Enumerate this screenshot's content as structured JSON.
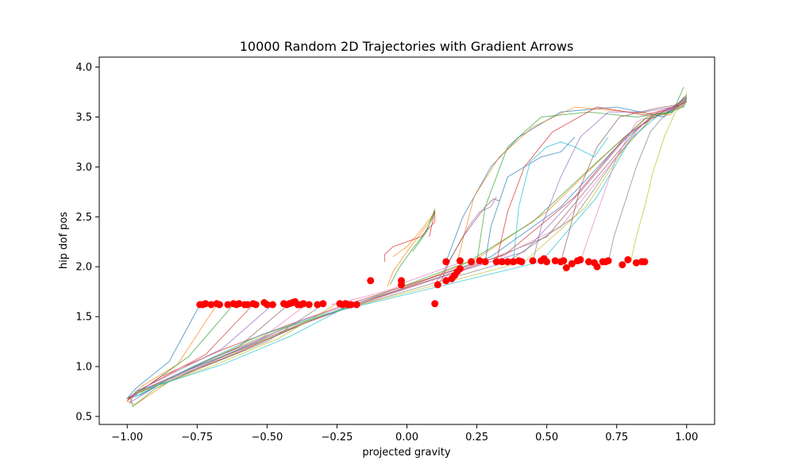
{
  "chart_data": {
    "type": "line",
    "title": "10000 Random 2D Trajectories with Gradient Arrows",
    "xlabel": "projected gravity",
    "ylabel": "hip dof pos",
    "xlim": [
      -1.1,
      1.1
    ],
    "ylim": [
      0.42,
      4.1
    ],
    "x_ticks": [
      -1.0,
      -0.75,
      -0.5,
      -0.25,
      0.0,
      0.25,
      0.5,
      0.75,
      1.0
    ],
    "x_tick_labels": [
      "−1.00",
      "−0.75",
      "−0.50",
      "−0.25",
      "0.00",
      "0.25",
      "0.50",
      "0.75",
      "1.00"
    ],
    "y_ticks": [
      0.5,
      1.0,
      1.5,
      2.0,
      2.5,
      3.0,
      3.5,
      4.0
    ],
    "y_tick_labels": [
      "0.5",
      "1.0",
      "1.5",
      "2.0",
      "2.5",
      "3.0",
      "3.5",
      "4.0"
    ],
    "grid": false,
    "line_colors": [
      "#1f77b4",
      "#ff7f0e",
      "#2ca02c",
      "#d62728",
      "#9467bd",
      "#8c564b",
      "#e377c2",
      "#7f7f7f",
      "#bcbd22",
      "#17becf"
    ],
    "marker_color": "#ff0000",
    "series": [
      {
        "x": [
          -0.74,
          -0.85,
          -0.97,
          -1.0,
          -0.95,
          -0.8,
          -0.55,
          -0.35,
          -0.2,
          0.1,
          0.3,
          0.55,
          0.75,
          0.88,
          0.97,
          1.0
        ],
        "y": [
          1.62,
          1.05,
          0.78,
          0.68,
          0.72,
          0.95,
          1.22,
          1.45,
          1.6,
          1.9,
          2.1,
          2.6,
          3.2,
          3.52,
          3.6,
          3.68
        ]
      },
      {
        "x": [
          -0.68,
          -0.82,
          -0.95,
          -1.0,
          -0.97,
          -0.85,
          -0.6,
          -0.4,
          -0.22,
          0.05,
          0.25,
          0.5,
          0.72,
          0.86,
          0.96,
          0.99
        ],
        "y": [
          1.62,
          1.02,
          0.8,
          0.65,
          0.62,
          0.85,
          1.15,
          1.4,
          1.58,
          1.85,
          2.08,
          2.55,
          3.15,
          3.5,
          3.58,
          3.7
        ]
      },
      {
        "x": [
          -0.62,
          -0.78,
          -0.92,
          -0.99,
          -0.98,
          -0.9,
          -0.7,
          -0.45,
          -0.26,
          0.0,
          0.22,
          0.45,
          0.68,
          0.85,
          0.95,
          1.0
        ],
        "y": [
          1.62,
          1.1,
          0.82,
          0.7,
          0.6,
          0.78,
          1.05,
          1.35,
          1.55,
          1.82,
          2.05,
          2.45,
          3.05,
          3.48,
          3.55,
          3.72
        ]
      },
      {
        "x": [
          -0.55,
          -0.72,
          -0.9,
          -0.98,
          -1.0,
          -0.88,
          -0.65,
          -0.42,
          -0.24,
          0.12,
          0.35,
          0.6,
          0.78,
          0.9,
          0.97,
          1.0
        ],
        "y": [
          1.62,
          1.12,
          0.85,
          0.72,
          0.66,
          0.9,
          1.18,
          1.42,
          1.6,
          1.92,
          2.12,
          2.7,
          3.3,
          3.55,
          3.62,
          3.65
        ]
      },
      {
        "x": [
          -0.48,
          -0.66,
          -0.86,
          -0.97,
          -0.99,
          -0.85,
          -0.58,
          -0.38,
          -0.2,
          0.18,
          0.42,
          0.62,
          0.8,
          0.92,
          0.98,
          1.0
        ],
        "y": [
          1.62,
          1.18,
          0.9,
          0.75,
          0.64,
          0.88,
          1.2,
          1.46,
          1.62,
          1.95,
          2.15,
          2.75,
          3.35,
          3.56,
          3.6,
          3.7
        ]
      },
      {
        "x": [
          -0.42,
          -0.6,
          -0.82,
          -0.95,
          -1.0,
          -0.9,
          -0.62,
          -0.36,
          -0.18,
          0.25,
          0.5,
          0.68,
          0.83,
          0.93,
          0.98,
          1.0
        ],
        "y": [
          1.63,
          1.2,
          0.92,
          0.76,
          0.68,
          0.82,
          1.12,
          1.44,
          1.62,
          2.02,
          2.3,
          2.9,
          3.4,
          3.58,
          3.63,
          3.66
        ]
      },
      {
        "x": [
          -0.36,
          -0.55,
          -0.78,
          -0.93,
          -0.99,
          -0.92,
          -0.7,
          -0.4,
          -0.2,
          0.3,
          0.55,
          0.72,
          0.85,
          0.94,
          0.99,
          1.0
        ],
        "y": [
          1.62,
          1.22,
          0.95,
          0.78,
          0.7,
          0.8,
          1.08,
          1.4,
          1.6,
          2.05,
          2.4,
          3.0,
          3.45,
          3.56,
          3.62,
          3.72
        ]
      },
      {
        "x": [
          -0.3,
          -0.5,
          -0.74,
          -0.9,
          -0.98,
          -0.94,
          -0.72,
          -0.44,
          -0.22,
          0.36,
          0.6,
          0.75,
          0.87,
          0.95,
          0.99,
          1.0
        ],
        "y": [
          1.62,
          1.25,
          0.98,
          0.8,
          0.72,
          0.76,
          1.05,
          1.38,
          1.58,
          2.05,
          2.5,
          3.1,
          3.48,
          3.57,
          3.6,
          3.68
        ]
      },
      {
        "x": [
          -0.25,
          -0.46,
          -0.7,
          -0.88,
          -0.97,
          -0.95,
          -0.75,
          -0.48,
          -0.26,
          0.42,
          0.64,
          0.78,
          0.88,
          0.95,
          0.99,
          1.0
        ],
        "y": [
          1.63,
          1.28,
          1.0,
          0.82,
          0.74,
          0.74,
          1.02,
          1.35,
          1.55,
          2.05,
          2.6,
          3.2,
          3.5,
          3.56,
          3.62,
          3.7
        ]
      },
      {
        "x": [
          -0.2,
          -0.42,
          -0.66,
          -0.86,
          -0.96,
          -0.97,
          -0.78,
          -0.52,
          -0.3,
          0.48,
          0.68,
          0.8,
          0.9,
          0.96,
          0.99,
          1.0
        ],
        "y": [
          1.62,
          1.3,
          1.02,
          0.84,
          0.76,
          0.7,
          0.98,
          1.32,
          1.52,
          2.05,
          2.7,
          3.28,
          3.52,
          3.57,
          3.61,
          3.69
        ]
      },
      {
        "x": [
          0.14,
          0.2,
          0.3,
          0.4,
          0.55,
          0.75,
          0.92,
          1.0
        ],
        "y": [
          2.05,
          2.5,
          3.0,
          3.3,
          3.55,
          3.6,
          3.5,
          3.72
        ]
      },
      {
        "x": [
          0.18,
          0.24,
          0.33,
          0.45,
          0.6,
          0.8,
          0.94,
          1.0
        ],
        "y": [
          2.05,
          2.7,
          3.1,
          3.4,
          3.6,
          3.55,
          3.52,
          3.7
        ]
      },
      {
        "x": [
          0.25,
          0.28,
          0.36,
          0.48,
          0.65,
          0.82,
          0.95,
          0.99
        ],
        "y": [
          2.05,
          2.6,
          3.2,
          3.5,
          3.55,
          3.5,
          3.55,
          3.8
        ]
      },
      {
        "x": [
          0.32,
          0.36,
          0.42,
          0.52,
          0.68,
          0.85,
          0.96,
          1.0
        ],
        "y": [
          2.05,
          2.55,
          3.0,
          3.35,
          3.6,
          3.52,
          3.6,
          3.65
        ]
      },
      {
        "x": [
          0.45,
          0.48,
          0.55,
          0.62,
          0.72,
          0.85,
          0.95,
          1.0
        ],
        "y": [
          2.05,
          2.4,
          2.9,
          3.3,
          3.55,
          3.55,
          3.6,
          3.7
        ]
      },
      {
        "x": [
          0.55,
          0.58,
          0.62,
          0.68,
          0.76,
          0.88,
          0.96,
          1.0
        ],
        "y": [
          2.05,
          2.35,
          2.8,
          3.2,
          3.5,
          3.58,
          3.62,
          3.68
        ]
      },
      {
        "x": [
          0.62,
          0.65,
          0.7,
          0.75,
          0.82,
          0.9,
          0.97,
          1.0
        ],
        "y": [
          2.05,
          2.3,
          2.7,
          3.1,
          3.45,
          3.55,
          3.6,
          3.72
        ]
      },
      {
        "x": [
          0.72,
          0.74,
          0.78,
          0.82,
          0.87,
          0.93,
          0.98,
          1.0
        ],
        "y": [
          2.05,
          2.3,
          2.65,
          3.0,
          3.35,
          3.55,
          3.62,
          3.7
        ]
      },
      {
        "x": [
          0.8,
          0.82,
          0.85,
          0.88,
          0.92,
          0.96,
          0.99,
          1.0
        ],
        "y": [
          2.05,
          2.3,
          2.6,
          2.95,
          3.3,
          3.55,
          3.62,
          3.75
        ]
      },
      {
        "x": [
          0.38,
          0.4,
          0.44,
          0.5,
          0.55,
          0.6,
          0.67,
          0.72
        ],
        "y": [
          2.05,
          2.6,
          3.05,
          3.2,
          3.25,
          3.2,
          3.1,
          3.3
        ]
      },
      {
        "x": [
          0.28,
          0.3,
          0.36,
          0.42,
          0.48,
          0.55,
          0.6
        ],
        "y": [
          2.05,
          2.4,
          2.9,
          3.0,
          3.1,
          3.15,
          3.3
        ]
      },
      {
        "x": [
          -0.07,
          -0.05,
          0.0,
          0.04,
          0.08,
          0.1,
          0.06,
          0.0,
          -0.05
        ],
        "y": [
          1.8,
          1.95,
          2.15,
          2.3,
          2.45,
          2.55,
          2.4,
          2.2,
          2.1
        ]
      },
      {
        "x": [
          -0.06,
          -0.03,
          0.02,
          0.06,
          0.09,
          0.1,
          0.07,
          0.02
        ],
        "y": [
          1.82,
          1.98,
          2.18,
          2.32,
          2.48,
          2.58,
          2.35,
          2.15
        ]
      },
      {
        "x": [
          -0.08,
          -0.08,
          -0.05,
          0.0,
          0.05,
          0.1,
          0.1,
          0.08
        ],
        "y": [
          2.05,
          2.12,
          2.2,
          2.25,
          2.3,
          2.45,
          2.56,
          2.3
        ]
      },
      {
        "x": [
          0.1,
          0.14,
          0.18,
          0.22,
          0.26,
          0.3,
          0.32
        ],
        "y": [
          1.82,
          2.0,
          2.2,
          2.4,
          2.55,
          2.6,
          2.7
        ]
      },
      {
        "x": [
          0.12,
          0.16,
          0.2,
          0.24,
          0.28,
          0.31,
          0.33
        ],
        "y": [
          1.85,
          2.1,
          2.3,
          2.45,
          2.6,
          2.68,
          2.66
        ]
      },
      {
        "x": [
          -0.27,
          -0.15,
          -0.05,
          0.0,
          0.05,
          0.1,
          0.15,
          0.2
        ],
        "y": [
          1.62,
          1.7,
          1.78,
          1.85,
          1.9,
          1.95,
          2.0,
          2.05
        ]
      }
    ],
    "markers": {
      "x": [
        -0.74,
        -0.73,
        -0.72,
        -0.7,
        -0.68,
        -0.67,
        -0.64,
        -0.62,
        -0.61,
        -0.6,
        -0.58,
        -0.57,
        -0.55,
        -0.54,
        -0.51,
        -0.5,
        -0.48,
        -0.44,
        -0.43,
        -0.42,
        -0.41,
        -0.4,
        -0.39,
        -0.38,
        -0.37,
        -0.35,
        -0.32,
        -0.3,
        -0.24,
        -0.23,
        -0.22,
        -0.21,
        -0.2,
        -0.18,
        -0.13,
        -0.02,
        -0.02,
        0.1,
        0.11,
        0.14,
        0.14,
        0.16,
        0.17,
        0.18,
        0.19,
        0.19,
        0.23,
        0.26,
        0.28,
        0.32,
        0.34,
        0.36,
        0.38,
        0.4,
        0.41,
        0.45,
        0.48,
        0.49,
        0.5,
        0.53,
        0.55,
        0.56,
        0.57,
        0.59,
        0.61,
        0.62,
        0.65,
        0.67,
        0.68,
        0.7,
        0.71,
        0.72,
        0.77,
        0.79,
        0.82,
        0.84,
        0.85
      ],
      "y": [
        1.62,
        1.62,
        1.63,
        1.62,
        1.63,
        1.62,
        1.62,
        1.63,
        1.62,
        1.63,
        1.62,
        1.62,
        1.63,
        1.62,
        1.64,
        1.62,
        1.62,
        1.63,
        1.62,
        1.63,
        1.64,
        1.65,
        1.62,
        1.62,
        1.63,
        1.62,
        1.62,
        1.63,
        1.63,
        1.62,
        1.63,
        1.62,
        1.62,
        1.62,
        1.86,
        1.82,
        1.86,
        1.63,
        1.82,
        2.05,
        1.86,
        1.88,
        1.91,
        1.95,
        1.98,
        2.06,
        2.05,
        2.06,
        2.05,
        2.05,
        2.05,
        2.05,
        2.05,
        2.06,
        2.05,
        2.06,
        2.06,
        2.08,
        2.05,
        2.06,
        2.05,
        2.06,
        1.99,
        2.03,
        2.06,
        2.07,
        2.05,
        2.04,
        2.0,
        2.05,
        2.05,
        2.06,
        2.02,
        2.07,
        2.04,
        2.05,
        2.05
      ]
    }
  }
}
